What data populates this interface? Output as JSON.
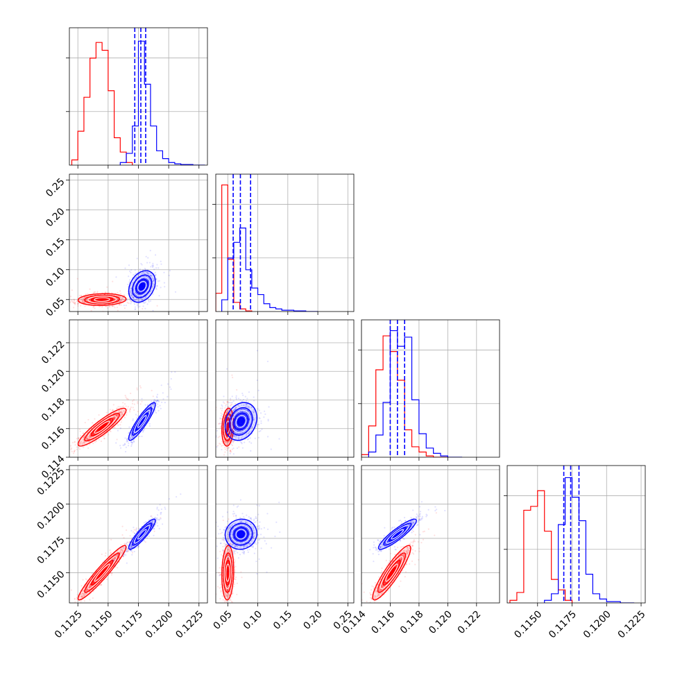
{
  "colors": {
    "series_a": "#ff0000",
    "series_b": "#0000ff",
    "grid": "#b0b0b0",
    "axes": "#000000"
  },
  "chart_data": {
    "type": "corner",
    "parameters": 4,
    "grid": true,
    "series": [
      {
        "color": "#ff0000",
        "centers": [
          0.1145,
          0.05,
          0.1161,
          0.115
        ],
        "spreads": [
          0.0009,
          0.0045,
          0.0006,
          0.0009
        ],
        "contour_scale_x": [
          1,
          1,
          1,
          1
        ],
        "correlations": {
          "1-0": 0.1,
          "2-0": 0.9,
          "2-1": 0.15,
          "3-0": 0.95,
          "3-1": 0.1,
          "3-2": 0.9
        },
        "histograms": [
          {
            "edges": [
              0.112,
              0.1125,
              0.113,
              0.1135,
              0.114,
              0.1145,
              0.115,
              0.1155,
              0.116,
              0.1165,
              0.117
            ],
            "counts": [
              0.04,
              0.26,
              0.52,
              0.82,
              0.94,
              0.88,
              0.57,
              0.21,
              0.1,
              0.02
            ]
          },
          {
            "edges": [
              0.03,
              0.04,
              0.05,
              0.06,
              0.07,
              0.08,
              0.09
            ],
            "counts": [
              0.14,
              0.97,
              0.4,
              0.07,
              0.02,
              0.005
            ]
          },
          {
            "edges": [
              0.114,
              0.1145,
              0.115,
              0.1155,
              0.116,
              0.1165,
              0.117,
              0.1175,
              0.118,
              0.1185,
              0.119,
              0.12
            ],
            "counts": [
              0.02,
              0.24,
              0.67,
              0.93,
              0.81,
              0.59,
              0.21,
              0.08,
              0.04,
              0.01,
              0.0
            ]
          },
          {
            "edges": [
              0.113,
              0.1135,
              0.114,
              0.1145,
              0.115,
              0.1155,
              0.116,
              0.1165,
              0.117,
              0.1175
            ],
            "counts": [
              0.02,
              0.08,
              0.71,
              0.74,
              0.86,
              0.55,
              0.18,
              0.1,
              0.02
            ]
          }
        ],
        "quantile_lines": []
      },
      {
        "color": "#0000ff",
        "centers": [
          0.1178,
          0.072,
          0.1165,
          0.1178
        ],
        "spreads": [
          0.0005,
          0.012,
          0.0006,
          0.0005
        ],
        "contour_scale_x": [
          1,
          1,
          1,
          1
        ],
        "correlations": {
          "1-0": 0.3,
          "2-0": 0.9,
          "2-1": 0.2,
          "3-0": 0.9,
          "3-1": 0.05,
          "3-2": 0.9
        },
        "histograms": [
          {
            "edges": [
              0.116,
              0.1165,
              0.117,
              0.1175,
              0.118,
              0.1185,
              0.119,
              0.1195,
              0.12,
              0.1205,
              0.121,
              0.122,
              0.123
            ],
            "counts": [
              0.02,
              0.09,
              0.3,
              0.95,
              0.62,
              0.3,
              0.11,
              0.05,
              0.02,
              0.01,
              0.005,
              0.0
            ]
          },
          {
            "edges": [
              0.04,
              0.05,
              0.06,
              0.07,
              0.08,
              0.09,
              0.1,
              0.11,
              0.12,
              0.13,
              0.14,
              0.16,
              0.18,
              0.2
            ],
            "counts": [
              0.09,
              0.41,
              0.53,
              0.64,
              0.32,
              0.18,
              0.13,
              0.06,
              0.03,
              0.02,
              0.01,
              0.005,
              0.0
            ]
          },
          {
            "edges": [
              0.1145,
              0.115,
              0.1155,
              0.116,
              0.1165,
              0.117,
              0.1175,
              0.118,
              0.1185,
              0.119,
              0.1195,
              0.12,
              0.121
            ],
            "counts": [
              0.04,
              0.17,
              0.42,
              0.97,
              0.85,
              0.92,
              0.44,
              0.18,
              0.07,
              0.03,
              0.01,
              0.0
            ]
          },
          {
            "edges": [
              0.1155,
              0.116,
              0.1165,
              0.117,
              0.1175,
              0.118,
              0.1185,
              0.119,
              0.1195,
              0.12,
              0.121,
              0.122
            ],
            "counts": [
              0.02,
              0.07,
              0.6,
              0.96,
              0.81,
              0.63,
              0.22,
              0.07,
              0.03,
              0.01,
              0.0
            ]
          }
        ],
        "quantile_lines": [
          [
            0.1172,
            0.1177,
            0.1181
          ],
          [
            0.059,
            0.071,
            0.088
          ],
          [
            0.116,
            0.1165,
            0.117
          ],
          [
            0.1169,
            0.1174,
            0.118
          ]
        ]
      }
    ],
    "axes": [
      {
        "range": [
          0.1118,
          0.1232
        ],
        "ticks": [
          0.1125,
          0.115,
          0.1175,
          0.12,
          0.1225
        ],
        "tick_labels": [
          "0.1125",
          "0.1150",
          "0.1175",
          "0.1200",
          "0.1225"
        ]
      },
      {
        "range": [
          0.03,
          0.26
        ],
        "ticks": [
          0.05,
          0.1,
          0.15,
          0.2,
          0.25
        ],
        "tick_labels": [
          "0.05",
          "0.10",
          "0.15",
          "0.20",
          "0.25"
        ]
      },
      {
        "range": [
          0.114,
          0.1236
        ],
        "ticks": [
          0.114,
          0.116,
          0.118,
          0.12,
          0.122
        ],
        "tick_labels": [
          "0.114",
          "0.116",
          "0.118",
          "0.120",
          "0.122"
        ]
      },
      {
        "range": [
          0.1128,
          0.1228
        ],
        "ticks": [
          0.115,
          0.1175,
          0.12,
          0.1225
        ],
        "tick_labels": [
          "0.1150",
          "0.1175",
          "0.1200",
          "0.1225"
        ]
      }
    ]
  }
}
